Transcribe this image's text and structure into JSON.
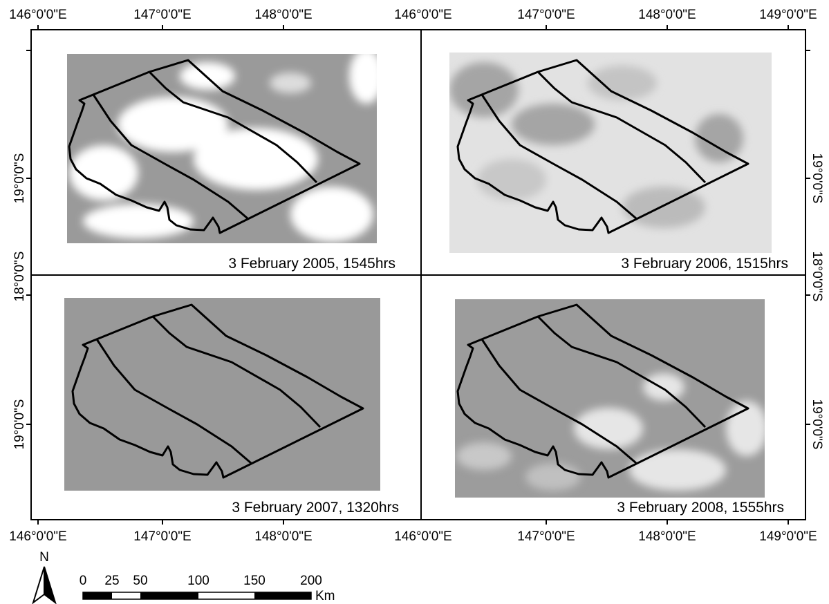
{
  "top_axis_labels": [
    "146°0'0\"E",
    "147°0'0\"E",
    "148°0'0\"E",
    "146°0'0\"E",
    "147°0'0\"E",
    "148°0'0\"E",
    "149°0'0\"E"
  ],
  "bottom_axis_labels": [
    "146°0'0\"E",
    "147°0'0\"E",
    "148°0'0\"E",
    "146°0'0\"E",
    "147°0'0\"E",
    "148°0'0\"E",
    "149°0'0\"E"
  ],
  "left_axis_labels": [
    "19°0'0\"S",
    "18°0'0\"S",
    "19°0'0\"S"
  ],
  "right_axis_labels": [
    "19°0'0\"S",
    "18°0'0\"S",
    "19°0'0\"S"
  ],
  "panels": [
    {
      "caption": "3 February 2005, 1545hrs"
    },
    {
      "caption": "3 February 2006, 1515hrs"
    },
    {
      "caption": "3 February 2007, 1320hrs"
    },
    {
      "caption": "3 February 2008, 1555hrs"
    }
  ],
  "north_arrow": {
    "label": "N"
  },
  "scale_bar": {
    "labels": [
      "0",
      "25",
      "50",
      "100",
      "150",
      "200"
    ],
    "unit": "Km"
  }
}
